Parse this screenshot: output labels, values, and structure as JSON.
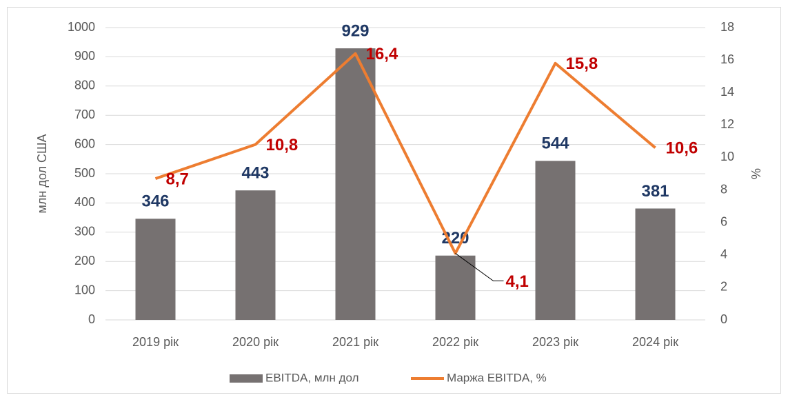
{
  "chart_data": {
    "type": "bar_line",
    "categories": [
      "2019 рік",
      "2020 рік",
      "2021 рік",
      "2022 рік",
      "2023 рік",
      "2024 рік"
    ],
    "y_label": "млн дол США",
    "y2_label": "%",
    "ylim": [
      0,
      1000
    ],
    "yticks": [
      0,
      100,
      200,
      300,
      400,
      500,
      600,
      700,
      800,
      900,
      1000
    ],
    "y2lim": [
      0,
      18
    ],
    "y2ticks": [
      0,
      2,
      4,
      6,
      8,
      10,
      12,
      14,
      16,
      18
    ],
    "grid": true,
    "legend": "bottom",
    "series": [
      {
        "name": "EBITDA, млн дол",
        "type": "bar",
        "color": "#767171",
        "values": [
          346,
          443,
          929,
          220,
          544,
          381
        ]
      },
      {
        "name": "Маржа EBITDA, %",
        "type": "line",
        "axis": "y2",
        "color": "#ed7d31",
        "values": [
          8.7,
          10.8,
          16.4,
          4.1,
          15.8,
          10.6
        ],
        "value_labels": [
          "8,7",
          "10,8",
          "16,4",
          "4,1",
          "15,8",
          "10,6"
        ]
      }
    ]
  }
}
